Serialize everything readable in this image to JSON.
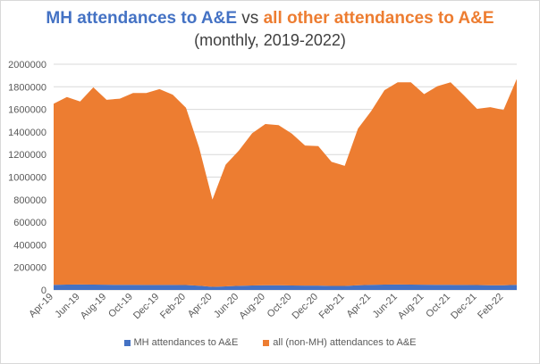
{
  "chart_data": {
    "type": "area",
    "stacked": true,
    "title_part1": "MH attendances to A&E",
    "title_part2": " vs ",
    "title_part3": "all other attendances to A&E",
    "subtitle": "(monthly, 2019-2022)",
    "xlabel": "",
    "ylabel": "",
    "ylim": [
      0,
      2000000
    ],
    "yticks": [
      "0",
      "200000",
      "400000",
      "600000",
      "800000",
      "1000000",
      "1200000",
      "1400000",
      "1600000",
      "1800000",
      "2000000"
    ],
    "grid": true,
    "legend_position": "bottom",
    "categories": [
      "Apr-19",
      "May-19",
      "Jun-19",
      "Jul-19",
      "Aug-19",
      "Sep-19",
      "Oct-19",
      "Nov-19",
      "Dec-19",
      "Jan-20",
      "Feb-20",
      "Mar-20",
      "Apr-20",
      "May-20",
      "Jun-20",
      "Jul-20",
      "Aug-20",
      "Sep-20",
      "Oct-20",
      "Nov-20",
      "Dec-20",
      "Jan-21",
      "Feb-21",
      "Mar-21",
      "Apr-21",
      "May-21",
      "Jun-21",
      "Jul-21",
      "Aug-21",
      "Sep-21",
      "Oct-21",
      "Nov-21",
      "Dec-21",
      "Jan-22",
      "Feb-22",
      "Mar-22"
    ],
    "xtick_labels": [
      "Apr-19",
      "Jun-19",
      "Aug-19",
      "Oct-19",
      "Dec-19",
      "Feb-20",
      "Apr-20",
      "Jun-20",
      "Aug-20",
      "Oct-20",
      "Dec-20",
      "Feb-21",
      "Apr-21",
      "Jun-21",
      "Aug-21",
      "Oct-21",
      "Dec-21",
      "Feb-22"
    ],
    "series": [
      {
        "name": "MH attendances to A&E",
        "color": "#4472c4",
        "values": [
          45000,
          47000,
          48000,
          47000,
          46000,
          45000,
          45000,
          44000,
          44000,
          44000,
          43000,
          38000,
          28000,
          32000,
          37000,
          40000,
          41000,
          41000,
          40000,
          39000,
          39000,
          36000,
          36000,
          42000,
          45000,
          47000,
          48000,
          47000,
          46000,
          45000,
          45000,
          44000,
          43000,
          42000,
          42000,
          45000
        ]
      },
      {
        "name": "all (non-MH) attendances to A&E",
        "color": "#ed7d31",
        "values": [
          1605000,
          1663000,
          1622000,
          1748000,
          1639000,
          1650000,
          1700000,
          1701000,
          1736000,
          1686000,
          1572000,
          1222000,
          772000,
          1078000,
          1198000,
          1348000,
          1429000,
          1419000,
          1345000,
          1241000,
          1236000,
          1099000,
          1064000,
          1388000,
          1540000,
          1723000,
          1792000,
          1793000,
          1689000,
          1760000,
          1795000,
          1681000,
          1562000,
          1578000,
          1553000,
          1825000
        ]
      }
    ]
  }
}
